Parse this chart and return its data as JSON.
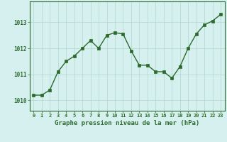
{
  "x": [
    0,
    1,
    2,
    3,
    4,
    5,
    6,
    7,
    8,
    9,
    10,
    11,
    12,
    13,
    14,
    15,
    16,
    17,
    18,
    19,
    20,
    21,
    22,
    23
  ],
  "y": [
    1010.2,
    1010.2,
    1010.4,
    1011.1,
    1011.5,
    1011.7,
    1012.0,
    1012.3,
    1012.0,
    1012.5,
    1012.6,
    1012.55,
    1011.9,
    1011.35,
    1011.35,
    1011.1,
    1011.1,
    1010.85,
    1011.3,
    1012.0,
    1012.55,
    1012.9,
    1013.05,
    1013.3
  ],
  "line_color": "#2d6a2d",
  "marker": "s",
  "marker_size": 2.5,
  "bg_color": "#d6f0f0",
  "plot_bg_color": "#d6f0f0",
  "grid_color": "#b0d8cc",
  "axis_color": "#2d6a2d",
  "label_color": "#2d6a2d",
  "xlabel": "Graphe pression niveau de la mer (hPa)",
  "xlabel_fontsize": 6.5,
  "ytick_labels": [
    "1010",
    "1011",
    "1012",
    "1013"
  ],
  "ytick_values": [
    1010,
    1011,
    1012,
    1013
  ],
  "ylim": [
    1009.6,
    1013.8
  ],
  "xlim": [
    -0.5,
    23.5
  ],
  "xtick_fontsize": 5.0,
  "ytick_fontsize": 5.5,
  "linewidth": 1.0
}
